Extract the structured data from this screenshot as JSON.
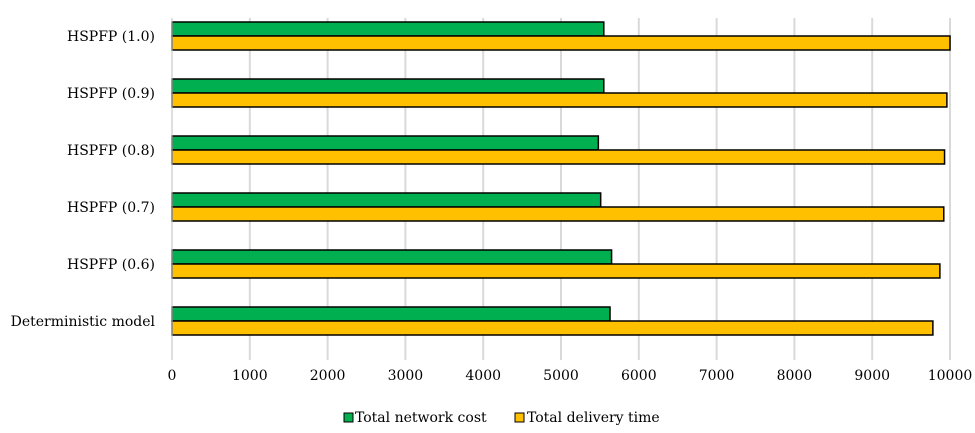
{
  "chart_data": {
    "type": "bar",
    "orientation": "horizontal",
    "categories": [
      "HSPFP (1.0)",
      "HSPFP (0.9)",
      "HSPFP (0.8)",
      "HSPFP (0.7)",
      "HSPFP (0.6)",
      "Deterministic model"
    ],
    "series": [
      {
        "name": "Total network cost",
        "color": "#00b050",
        "values": [
          5550,
          5550,
          5480,
          5510,
          5650,
          5630
        ]
      },
      {
        "name": "Total delivery time",
        "color": "#ffc000",
        "values": [
          10000,
          9960,
          9930,
          9920,
          9870,
          9780
        ]
      }
    ],
    "xlim": [
      0,
      10000
    ],
    "xticks": [
      "0",
      "1000",
      "2000",
      "3000",
      "4000",
      "5000",
      "6000",
      "7000",
      "8000",
      "9000",
      "10000"
    ],
    "grid": true,
    "legend": "bottom-center"
  }
}
